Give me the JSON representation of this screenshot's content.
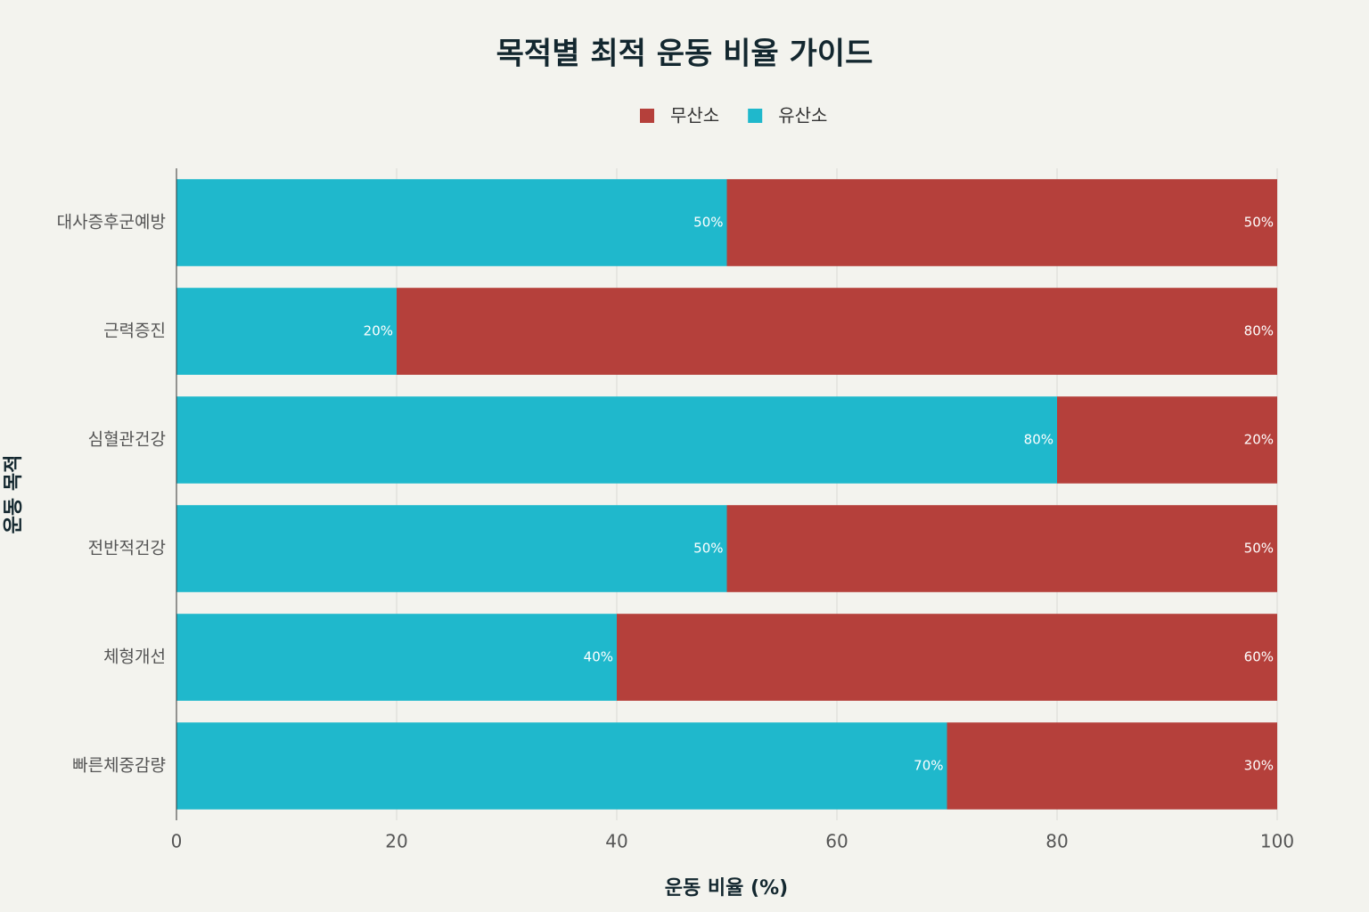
{
  "chart_data": {
    "type": "stacked-bar-horizontal",
    "title": "목적별 최적 운동 비율 가이드",
    "xlabel": "운동 비율 (%)",
    "ylabel": "운동 목적",
    "categories": [
      "대사증후군예방",
      "근력증진",
      "심혈관건강",
      "전반적건강",
      "체형개선",
      "빠른체중감량"
    ],
    "series": [
      {
        "name": "무산소",
        "color": "#b5403b",
        "values": [
          50,
          80,
          20,
          50,
          60,
          30
        ],
        "value_labels": [
          "50%",
          "80%",
          "20%",
          "50%",
          "60%",
          "30%"
        ]
      },
      {
        "name": "유산소",
        "color": "#1fb8cc",
        "values": [
          50,
          20,
          80,
          50,
          40,
          70
        ],
        "value_labels": [
          "50%",
          "20%",
          "80%",
          "50%",
          "40%",
          "70%"
        ]
      }
    ],
    "xlim": [
      0,
      100
    ],
    "xticks": [
      0,
      20,
      40,
      60,
      80,
      100
    ],
    "grid": true
  }
}
